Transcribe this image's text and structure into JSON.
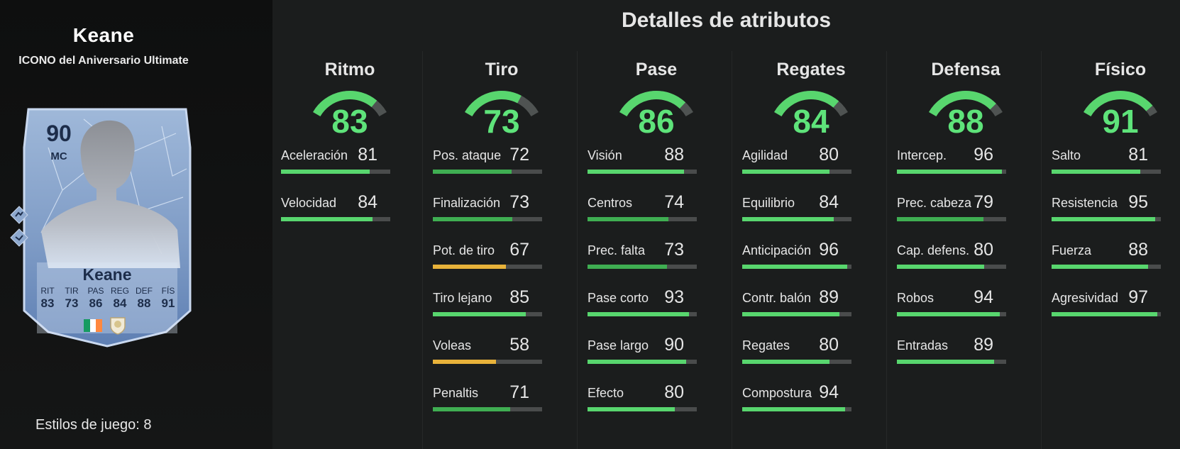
{
  "player": {
    "name": "Keane",
    "card_type": "ICONO del Aniversario Ultimate",
    "playstyles_label": "Estilos de juego: 8"
  },
  "card": {
    "rating": "90",
    "position": "MC",
    "name": "Keane",
    "stats": [
      {
        "label": "RIT",
        "value": "83"
      },
      {
        "label": "TIR",
        "value": "73"
      },
      {
        "label": "PAS",
        "value": "86"
      },
      {
        "label": "REG",
        "value": "84"
      },
      {
        "label": "DEF",
        "value": "88"
      },
      {
        "label": "FÍS",
        "value": "91"
      }
    ],
    "flag_colors": [
      "#169b62",
      "#ffffff",
      "#ff883e"
    ]
  },
  "details": {
    "title": "Detalles de atributos",
    "categories": [
      {
        "name": "Ritmo",
        "value": 83,
        "attributes": [
          {
            "label": "Aceleración",
            "value": 81
          },
          {
            "label": "Velocidad",
            "value": 84
          }
        ]
      },
      {
        "name": "Tiro",
        "value": 73,
        "attributes": [
          {
            "label": "Pos. ataque",
            "value": 72
          },
          {
            "label": "Finalización",
            "value": 73
          },
          {
            "label": "Pot. de tiro",
            "value": 67
          },
          {
            "label": "Tiro lejano",
            "value": 85
          },
          {
            "label": "Voleas",
            "value": 58
          },
          {
            "label": "Penaltis",
            "value": 71
          }
        ]
      },
      {
        "name": "Pase",
        "value": 86,
        "attributes": [
          {
            "label": "Visión",
            "value": 88
          },
          {
            "label": "Centros",
            "value": 74
          },
          {
            "label": "Prec. falta",
            "value": 73
          },
          {
            "label": "Pase corto",
            "value": 93
          },
          {
            "label": "Pase largo",
            "value": 90
          },
          {
            "label": "Efecto",
            "value": 80
          }
        ]
      },
      {
        "name": "Regates",
        "value": 84,
        "attributes": [
          {
            "label": "Agilidad",
            "value": 80
          },
          {
            "label": "Equilibrio",
            "value": 84
          },
          {
            "label": "Anticipación",
            "value": 96
          },
          {
            "label": "Contr. balón",
            "value": 89
          },
          {
            "label": "Regates",
            "value": 80
          },
          {
            "label": "Compostura",
            "value": 94
          }
        ]
      },
      {
        "name": "Defensa",
        "value": 88,
        "attributes": [
          {
            "label": "Intercep.",
            "value": 96
          },
          {
            "label": "Prec. cabeza",
            "value": 79
          },
          {
            "label": "Cap. defens.",
            "value": 80
          },
          {
            "label": "Robos",
            "value": 94
          },
          {
            "label": "Entradas",
            "value": 89
          }
        ]
      },
      {
        "name": "Físico",
        "value": 91,
        "attributes": [
          {
            "label": "Salto",
            "value": 81
          },
          {
            "label": "Resistencia",
            "value": 95
          },
          {
            "label": "Fuerza",
            "value": 88
          },
          {
            "label": "Agresividad",
            "value": 97
          }
        ]
      }
    ]
  },
  "colors": {
    "high": "#58d66e",
    "mid": "#3fae52",
    "low": "#e8b23a",
    "track": "#4a4c4c",
    "gauge_track": "#4f5352"
  }
}
